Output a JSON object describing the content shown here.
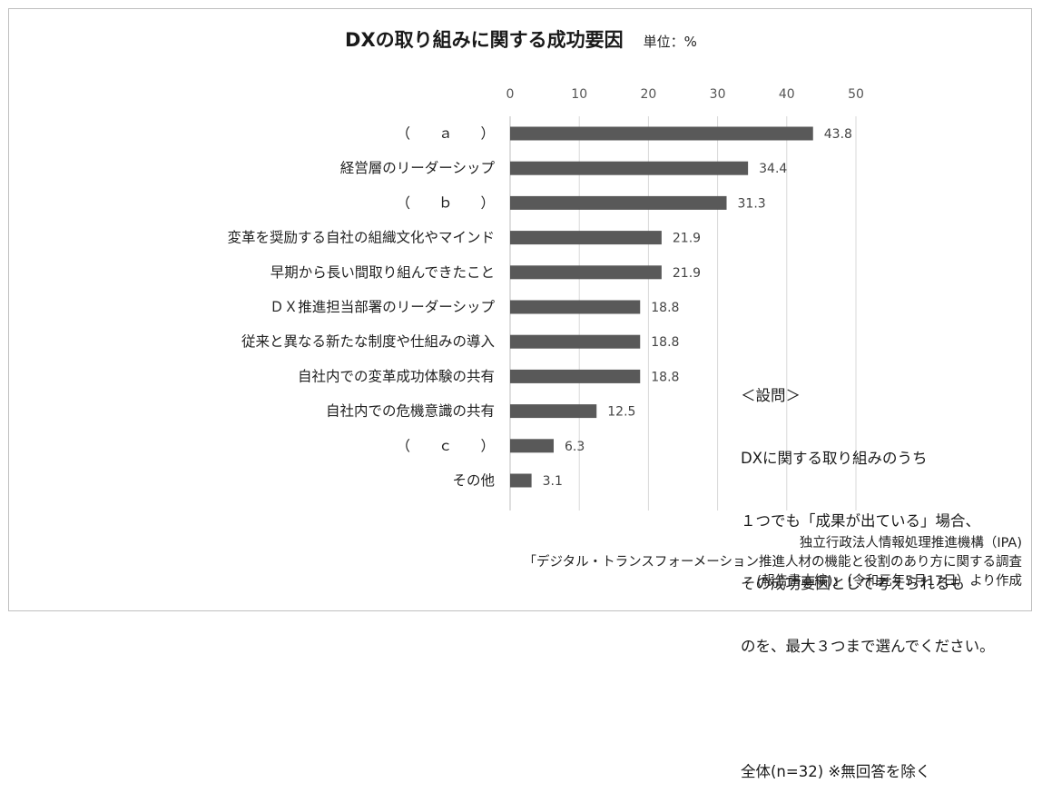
{
  "chart_data": {
    "type": "bar",
    "orientation": "horizontal",
    "title": "DXの取り組みに関する成功要因",
    "unit_label": "単位：%",
    "xlim": [
      0,
      50
    ],
    "x_ticks": [
      "0",
      "10",
      "20",
      "30",
      "40",
      "50"
    ],
    "grid": true,
    "bar_color": "#595959",
    "categories": [
      "（　　ａ　　）",
      "経営層のリーダーシップ",
      "（　　ｂ　　）",
      "変革を奨励する自社の組織文化やマインド",
      "早期から長い間取り組んできたこと",
      "ＤＸ推進担当部署のリーダーシップ",
      "従来と異なる新たな制度や仕組みの導入",
      "自社内での変革成功体験の共有",
      "自社内での危機意識の共有",
      "（　　ｃ　　）",
      "その他"
    ],
    "values": [
      43.8,
      34.4,
      31.3,
      21.9,
      21.9,
      18.8,
      18.8,
      18.8,
      12.5,
      6.3,
      3.1
    ],
    "value_labels": [
      "43.8",
      "34.4",
      "31.3",
      "21.9",
      "21.9",
      "18.8",
      "18.8",
      "18.8",
      "12.5",
      "6.3",
      "3.1"
    ]
  },
  "note": {
    "heading": "＜設問＞",
    "line1": "DXに関する取り組みのうち",
    "line2": "１つでも「成果が出ている」場合、",
    "line3": "その成功要因として考えられるも",
    "line4": "のを、最大３つまで選んでください。",
    "respondents": "全体(n=32) ※無回答を除く"
  },
  "source": {
    "line1": "独立行政法人情報処理推進機構（IPA)",
    "line2": "「デジタル・トランスフォーメーション推進人材の機能と役割のあり方に関する調査",
    "line3": "(報告書本編)」（令和元年5月17日）より作成"
  }
}
